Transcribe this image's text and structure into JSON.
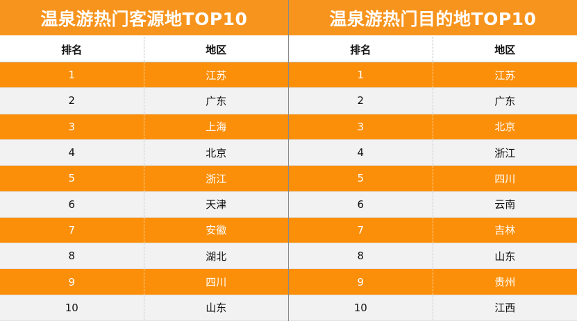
{
  "colors": {
    "accent": "#f7941d",
    "odd_row": "#fb8f0a",
    "even_row": "#f2f2f2"
  },
  "left_table": {
    "title": "温泉游热门客源地TOP10",
    "headers": [
      "排名",
      "地区"
    ],
    "rows": [
      [
        "1",
        "江苏"
      ],
      [
        "2",
        "广东"
      ],
      [
        "3",
        "上海"
      ],
      [
        "4",
        "北京"
      ],
      [
        "5",
        "浙江"
      ],
      [
        "6",
        "天津"
      ],
      [
        "7",
        "安徽"
      ],
      [
        "8",
        "湖北"
      ],
      [
        "9",
        "四川"
      ],
      [
        "10",
        "山东"
      ]
    ]
  },
  "right_table": {
    "title": "温泉游热门目的地TOP10",
    "headers": [
      "排名",
      "地区"
    ],
    "rows": [
      [
        "1",
        "江苏"
      ],
      [
        "2",
        "广东"
      ],
      [
        "3",
        "北京"
      ],
      [
        "4",
        "浙江"
      ],
      [
        "5",
        "四川"
      ],
      [
        "6",
        "云南"
      ],
      [
        "7",
        "吉林"
      ],
      [
        "8",
        "山东"
      ],
      [
        "9",
        "贵州"
      ],
      [
        "10",
        "江西"
      ]
    ]
  }
}
